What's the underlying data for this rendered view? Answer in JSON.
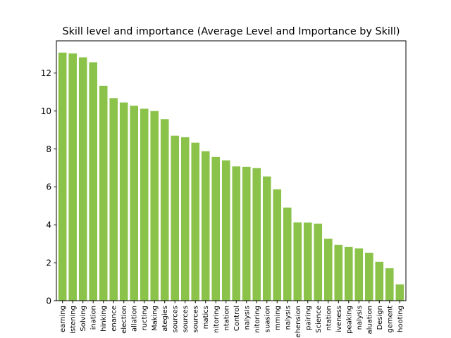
{
  "chart_data": {
    "type": "bar",
    "title": "Skill level and importance (Average Level and Importance by Skill)",
    "xlabel": "",
    "ylabel": "",
    "ylim": [
      0,
      13.7
    ],
    "yticks": [
      0,
      2,
      4,
      6,
      8,
      10,
      12
    ],
    "grid": false,
    "bar_color": "#8bc34a",
    "categories": [
      "earning",
      "istening",
      "Solving",
      "ination",
      "hinking",
      "enance",
      "election",
      "allation",
      "ructing",
      "Making",
      "ategies",
      "sources",
      "sources",
      "sources",
      "matics",
      "nitoring",
      "ntation",
      "Control",
      "nalysis",
      "nitoring",
      "suasion",
      "mming",
      "nalysis",
      "ehension",
      "pairing",
      "Science",
      "ntation",
      "iveness",
      "peaking",
      "nalysis",
      "aluation",
      "Design",
      "gement",
      "hooting"
    ],
    "values": [
      13.08,
      13.04,
      12.83,
      12.57,
      11.33,
      10.68,
      10.45,
      10.28,
      10.12,
      10.0,
      9.57,
      8.7,
      8.62,
      8.33,
      7.88,
      7.58,
      7.4,
      7.08,
      7.06,
      6.99,
      6.55,
      5.87,
      4.91,
      4.13,
      4.12,
      4.06,
      3.27,
      2.94,
      2.83,
      2.76,
      2.53,
      2.05,
      1.71,
      0.86
    ]
  }
}
